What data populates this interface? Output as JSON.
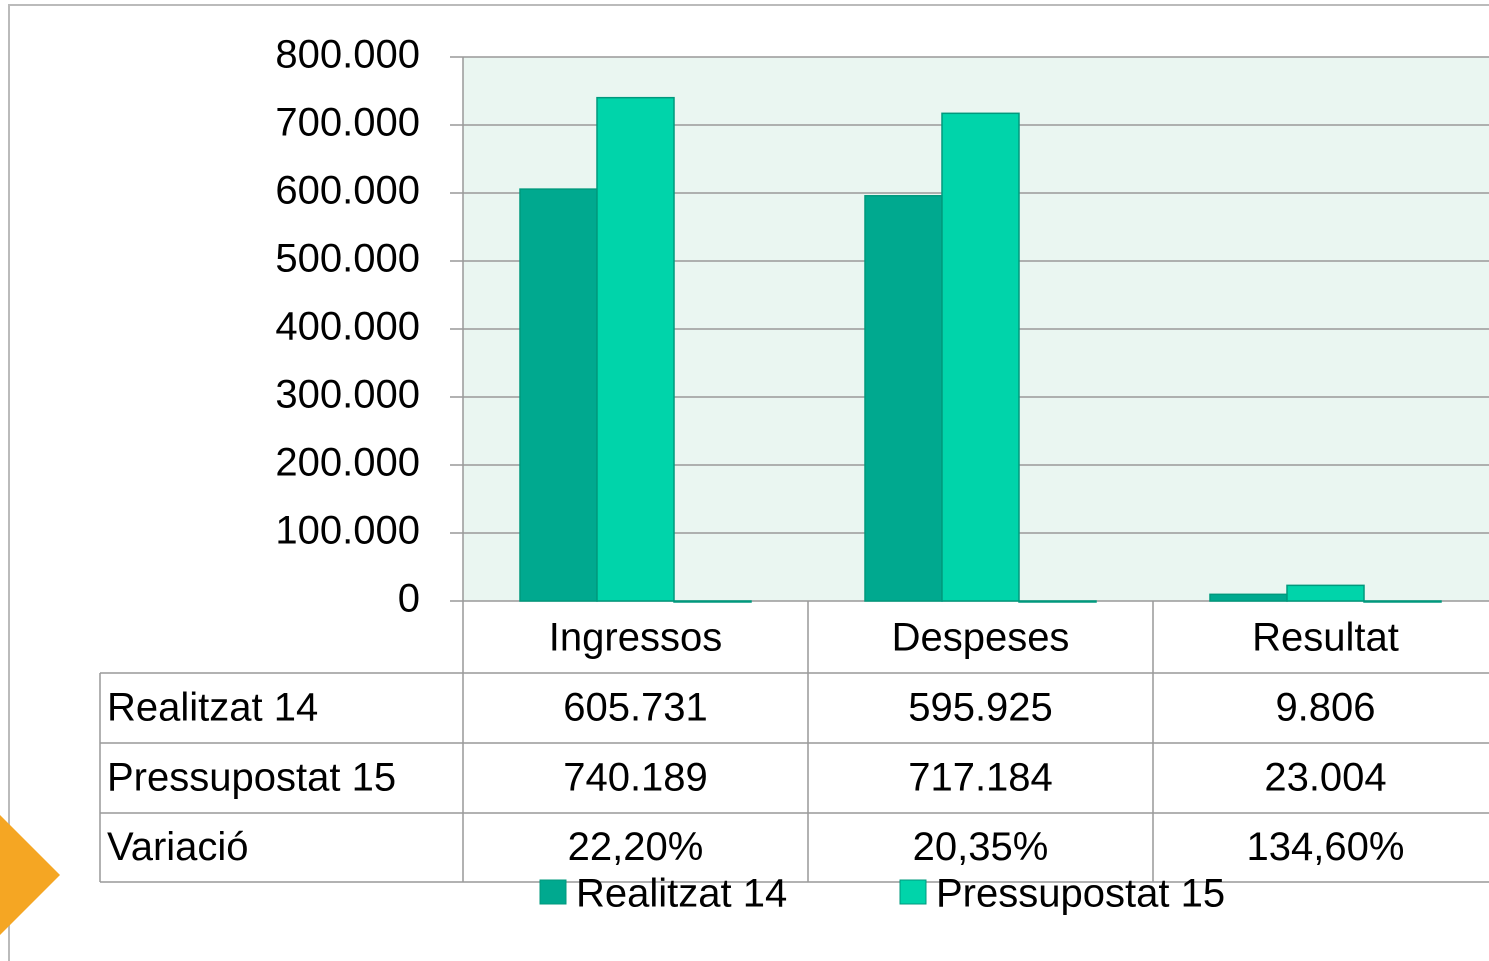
{
  "chart_data": {
    "type": "bar",
    "categories": [
      "Ingressos",
      "Despeses",
      "Resultat"
    ],
    "series": [
      {
        "name": "Realitzat 14",
        "color": "#00a98f",
        "values": [
          605731,
          595925,
          9806
        ],
        "value_labels": [
          "605.731",
          "595.925",
          "9.806"
        ]
      },
      {
        "name": "Pressupostat 15",
        "color": "#00d4aa",
        "values": [
          740189,
          717184,
          23004
        ],
        "value_labels": [
          "740.189",
          "717.184",
          "23.004"
        ]
      },
      {
        "name": "Variació",
        "color": "#0b8f74",
        "values": [
          0.222,
          0.2035,
          1.346
        ],
        "value_labels": [
          "22,20%",
          "20,35%",
          "134,60%"
        ],
        "in_legend": false
      }
    ],
    "ylim": [
      0,
      800000
    ],
    "yticks": [
      0,
      {
        "value": 100000,
        "label": "100.000"
      },
      {
        "value": 200000,
        "label": "200.000"
      },
      {
        "value": 300000,
        "label": "300.000"
      },
      {
        "value": 400000,
        "label": "400.000"
      },
      {
        "value": 500000,
        "label": "500.000"
      },
      {
        "value": 600000,
        "label": "600.000"
      },
      {
        "value": 700000,
        "label": "700.000"
      },
      {
        "value": 800000,
        "label": "800.000"
      }
    ],
    "grid": true,
    "legend": "bottom",
    "data_table": true
  }
}
